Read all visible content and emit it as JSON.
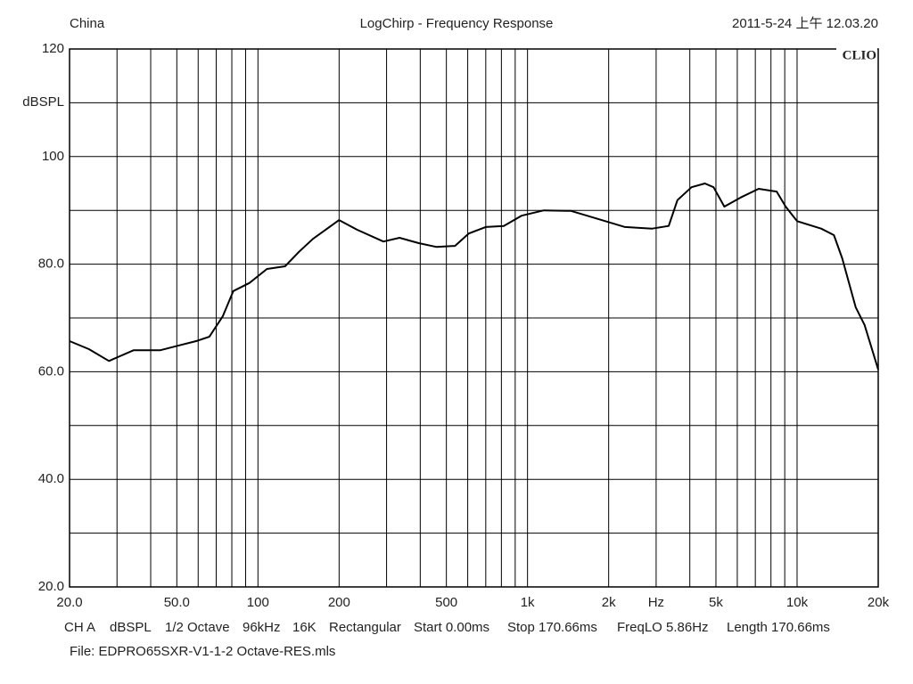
{
  "chart_data": {
    "type": "line",
    "title": "LogChirp - Frequency Response",
    "location": "China",
    "timestamp": "2011-5-24 上午 12.03.20",
    "brand": "CLIO",
    "y_label": "dBSPL",
    "xscale": "log",
    "xlim": [
      20,
      20000
    ],
    "ylim": [
      20,
      120
    ],
    "xticks": [
      {
        "value": 20,
        "label": "20.0"
      },
      {
        "value": 50,
        "label": "50.0"
      },
      100,
      200,
      500,
      {
        "value": 1000,
        "label": "1k"
      },
      {
        "value": 2000,
        "label": "2k"
      },
      {
        "value": 3000,
        "label": "Hz"
      },
      {
        "value": 5000,
        "label": "5k"
      },
      {
        "value": 10000,
        "label": "10k"
      },
      {
        "value": 20000,
        "label": "20k"
      }
    ],
    "xminor": [
      30,
      40,
      60,
      70,
      80,
      90,
      300,
      400,
      600,
      700,
      800,
      900,
      4000,
      6000,
      7000,
      8000,
      9000
    ],
    "yticks": [
      {
        "value": 20,
        "label": "20.0"
      },
      {
        "value": 40,
        "label": "40.0"
      },
      {
        "value": 60,
        "label": "60.0"
      },
      {
        "value": 80,
        "label": "80.0"
      },
      100,
      120
    ],
    "yminor": [
      30,
      50,
      70,
      90,
      110
    ],
    "grid": true,
    "color": "#000000",
    "x": [
      20,
      23.6,
      28,
      34.6,
      43.5,
      51,
      59,
      66,
      74,
      81,
      93,
      108,
      126,
      142,
      160,
      200,
      233,
      292,
      335,
      395,
      460,
      538,
      605,
      700,
      816,
      950,
      1150,
      1450,
      1830,
      2300,
      2900,
      3340,
      3600,
      4060,
      4550,
      4900,
      5370,
      6180,
      7200,
      8400,
      9070,
      10000,
      12280,
      13700,
      14700,
      16500,
      17800,
      20000
    ],
    "values": [
      65.7,
      64.2,
      62.0,
      64.0,
      64.0,
      64.9,
      65.7,
      66.5,
      70.3,
      75.0,
      76.5,
      79.1,
      79.6,
      82.3,
      84.7,
      88.2,
      86.4,
      84.2,
      84.9,
      83.9,
      83.2,
      83.4,
      85.7,
      86.9,
      87.1,
      89.0,
      90.0,
      89.9,
      88.4,
      86.9,
      86.6,
      87.1,
      91.9,
      94.3,
      95.0,
      94.3,
      90.7,
      92.4,
      94.0,
      93.5,
      90.7,
      88.0,
      86.6,
      85.4,
      81.1,
      72.0,
      68.7,
      60.4
    ],
    "info": [
      "CH A",
      "dBSPL",
      "1/2 Octave",
      "96kHz",
      "16K",
      "Rectangular",
      "Start 0.00ms",
      "Stop 170.66ms",
      "FreqLO 5.86Hz",
      "Length 170.66ms"
    ],
    "file": "File: EDPRO65SXR-V1-1-2 Octave-RES.mls"
  }
}
